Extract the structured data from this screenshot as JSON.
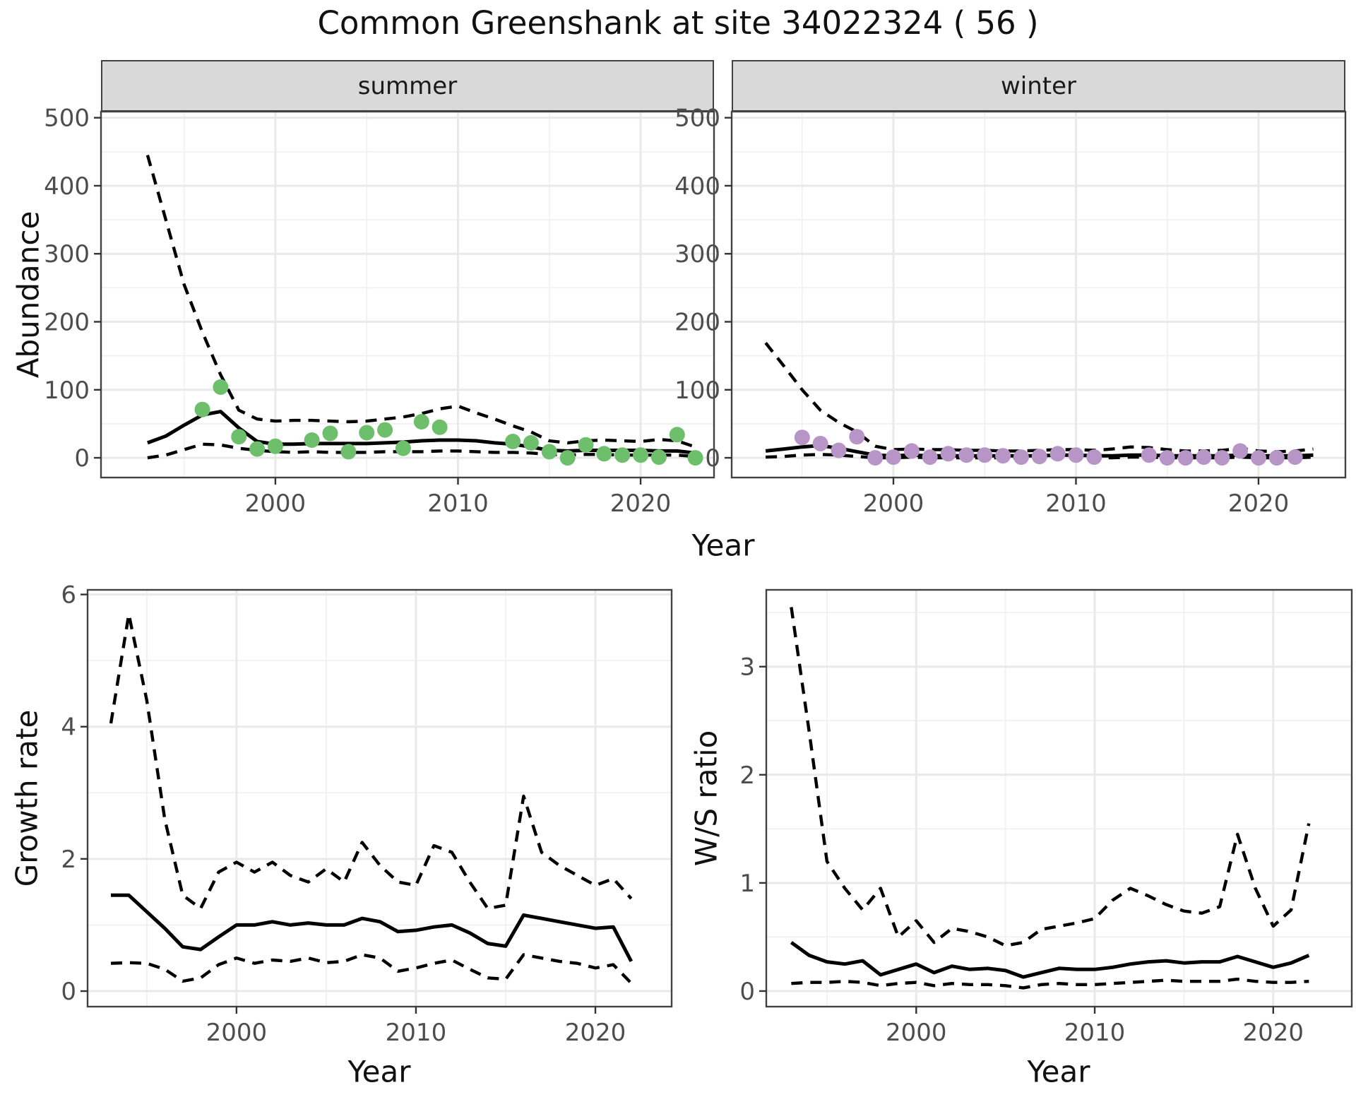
{
  "title": "Common Greenshank at site 34022324 ( 56 )",
  "colors": {
    "summer_point": "#6dbf6b",
    "winter_point": "#b795c7",
    "line": "#000000",
    "strip_bg": "#d9d9d9",
    "panel_border": "#424242",
    "tick_text": "#4d4d4d"
  },
  "chart_data": [
    {
      "id": "abundance-summer",
      "type": "line",
      "facet_label": "summer",
      "xlabel": "Year",
      "ylabel": "Abundance",
      "xlim": [
        1990.45,
        2024.02
      ],
      "ylim": [
        -29,
        509
      ],
      "x_ticks": [
        2000,
        2010,
        2020
      ],
      "x_minor": [
        1995,
        2005,
        2015
      ],
      "y_ticks": [
        0,
        100,
        200,
        300,
        400,
        500
      ],
      "y_minor": [
        50,
        150,
        250,
        350,
        450
      ],
      "x": [
        1993,
        1994,
        1995,
        1996,
        1997,
        1998,
        1999,
        2000,
        2001,
        2002,
        2003,
        2004,
        2005,
        2006,
        2007,
        2008,
        2009,
        2010,
        2011,
        2012,
        2013,
        2014,
        2015,
        2016,
        2017,
        2018,
        2019,
        2020,
        2021,
        2022,
        2023
      ],
      "series": [
        {
          "name": "upper_ci",
          "style": "dashed",
          "values": [
            445,
            350,
            255,
            185,
            122,
            70,
            57,
            54,
            55,
            55,
            54,
            53,
            54,
            57,
            60,
            65,
            72,
            76,
            66,
            57,
            47,
            38,
            25,
            22,
            25,
            26,
            25,
            24,
            27,
            25,
            16
          ]
        },
        {
          "name": "median",
          "style": "solid",
          "values": [
            22,
            32,
            48,
            63,
            68,
            44,
            24,
            20,
            20,
            21,
            21,
            21,
            21,
            22,
            23,
            25,
            26,
            26,
            25,
            22,
            20,
            16,
            11,
            10,
            11,
            11,
            11,
            11,
            10,
            10,
            7
          ]
        },
        {
          "name": "lower_ci",
          "style": "dashed",
          "values": [
            0,
            4,
            12,
            20,
            19,
            14,
            11,
            9,
            8,
            9,
            8,
            8,
            8,
            9,
            9,
            9,
            10,
            10,
            9,
            8,
            8,
            7,
            5,
            4,
            5,
            5,
            4,
            4,
            4,
            4,
            2
          ]
        }
      ],
      "points": {
        "name": "observed-counts",
        "color_key": "summer_point",
        "x": [
          1996,
          1997,
          1998,
          1999,
          2000,
          2002,
          2003,
          2004,
          2005,
          2006,
          2007,
          2008,
          2009,
          2013,
          2014,
          2015,
          2016,
          2017,
          2018,
          2019,
          2020,
          2021,
          2022,
          2023
        ],
        "y": [
          71,
          104,
          31,
          13,
          17,
          26,
          36,
          9,
          37,
          41,
          14,
          53,
          45,
          24,
          22,
          9,
          0,
          19,
          6,
          4,
          4,
          1,
          34,
          0
        ]
      }
    },
    {
      "id": "abundance-winter",
      "type": "line",
      "facet_label": "winter",
      "xlabel": "Year",
      "ylabel": "Abundance",
      "xlim": [
        1991.14,
        2024.76
      ],
      "ylim": [
        -29,
        509
      ],
      "x_ticks": [
        2000,
        2010,
        2020
      ],
      "x_minor": [
        1995,
        2005,
        2015
      ],
      "y_ticks": [
        0,
        100,
        200,
        300,
        400,
        500
      ],
      "y_minor": [
        50,
        150,
        250,
        350,
        450
      ],
      "x": [
        1993,
        1994,
        1995,
        1996,
        1997,
        1998,
        1999,
        2000,
        2001,
        2002,
        2003,
        2004,
        2005,
        2006,
        2007,
        2008,
        2009,
        2010,
        2011,
        2012,
        2013,
        2014,
        2015,
        2016,
        2017,
        2018,
        2019,
        2020,
        2021,
        2022,
        2023
      ],
      "series": [
        {
          "name": "upper_ci",
          "style": "dashed",
          "values": [
            169,
            135,
            100,
            70,
            52,
            38,
            17,
            12,
            13,
            12,
            12,
            11,
            11,
            10,
            10,
            11,
            12,
            12,
            11,
            13,
            16,
            15,
            12,
            10,
            10,
            11,
            14,
            10,
            9,
            10,
            13
          ]
        },
        {
          "name": "median",
          "style": "solid",
          "values": [
            10,
            13,
            16,
            18,
            14,
            9,
            4,
            3,
            4,
            3,
            3,
            3,
            3,
            3,
            3,
            3,
            4,
            4,
            3,
            3,
            4,
            4,
            3,
            3,
            3,
            3,
            4,
            3,
            3,
            3,
            4
          ]
        },
        {
          "name": "lower_ci",
          "style": "dashed",
          "values": [
            1,
            2,
            4,
            5,
            4,
            2,
            0,
            0,
            1,
            0,
            0,
            0,
            0,
            0,
            0,
            0,
            1,
            1,
            0,
            0,
            1,
            1,
            0,
            0,
            0,
            0,
            1,
            0,
            0,
            0,
            1
          ]
        }
      ],
      "points": {
        "name": "observed-counts",
        "color_key": "winter_point",
        "x": [
          1995,
          1996,
          1997,
          1998,
          1999,
          2000,
          2001,
          2002,
          2003,
          2004,
          2005,
          2006,
          2007,
          2008,
          2009,
          2010,
          2011,
          2014,
          2015,
          2016,
          2017,
          2018,
          2019,
          2020,
          2021,
          2022
        ],
        "y": [
          30,
          21,
          11,
          31,
          0,
          1,
          10,
          1,
          6,
          4,
          4,
          3,
          1,
          2,
          6,
          4,
          1,
          4,
          0,
          0,
          1,
          0,
          10,
          0,
          0,
          1
        ]
      }
    },
    {
      "id": "growth-rate",
      "type": "line",
      "facet_label": "",
      "xlabel": "Year",
      "ylabel": "Growth rate",
      "xlim": [
        1991.7,
        2024.25
      ],
      "ylim": [
        -0.235,
        6.07
      ],
      "x_ticks": [
        2000,
        2010,
        2020
      ],
      "x_minor": [
        1995,
        2005,
        2015
      ],
      "y_ticks": [
        0,
        2,
        4,
        6
      ],
      "y_minor": [
        1,
        3,
        5
      ],
      "x": [
        1993,
        1994,
        1995,
        1996,
        1997,
        1998,
        1999,
        2000,
        2001,
        2002,
        2003,
        2004,
        2005,
        2006,
        2007,
        2008,
        2009,
        2010,
        2011,
        2012,
        2013,
        2014,
        2015,
        2016,
        2017,
        2018,
        2019,
        2020,
        2021,
        2022
      ],
      "series": [
        {
          "name": "upper_ci",
          "style": "dashed",
          "values": [
            4.05,
            5.7,
            4.4,
            2.6,
            1.45,
            1.25,
            1.8,
            1.95,
            1.8,
            1.95,
            1.75,
            1.65,
            1.85,
            1.65,
            2.25,
            1.9,
            1.65,
            1.6,
            2.2,
            2.1,
            1.65,
            1.25,
            1.3,
            2.95,
            2.1,
            1.9,
            1.75,
            1.6,
            1.7,
            1.4
          ]
        },
        {
          "name": "median",
          "style": "solid",
          "values": [
            1.45,
            1.45,
            1.2,
            0.95,
            0.67,
            0.63,
            0.82,
            1.0,
            1.0,
            1.05,
            1.0,
            1.03,
            1.0,
            1.0,
            1.1,
            1.05,
            0.9,
            0.92,
            0.97,
            1.0,
            0.88,
            0.72,
            0.68,
            1.15,
            1.1,
            1.05,
            1.0,
            0.95,
            0.97,
            0.45
          ]
        },
        {
          "name": "lower_ci",
          "style": "dashed",
          "values": [
            0.42,
            0.43,
            0.42,
            0.33,
            0.15,
            0.2,
            0.4,
            0.5,
            0.42,
            0.47,
            0.45,
            0.5,
            0.43,
            0.45,
            0.55,
            0.5,
            0.3,
            0.35,
            0.42,
            0.47,
            0.33,
            0.2,
            0.18,
            0.55,
            0.5,
            0.45,
            0.42,
            0.35,
            0.4,
            0.12
          ]
        }
      ],
      "points": null
    },
    {
      "id": "ws-ratio",
      "type": "line",
      "facet_label": "",
      "xlabel": "Year",
      "ylabel": "W/S ratio",
      "xlim": [
        1991.6,
        2024.4
      ],
      "ylim": [
        -0.144,
        3.71
      ],
      "x_ticks": [
        2000,
        2010,
        2020
      ],
      "x_minor": [
        1995,
        2005,
        2015
      ],
      "y_ticks": [
        0,
        1,
        2,
        3
      ],
      "y_minor": [
        0.5,
        1.5,
        2.5,
        3.5
      ],
      "x": [
        1993,
        1994,
        1995,
        1996,
        1997,
        1998,
        1999,
        2000,
        2001,
        2002,
        2003,
        2004,
        2005,
        2006,
        2007,
        2008,
        2009,
        2010,
        2011,
        2012,
        2013,
        2014,
        2015,
        2016,
        2017,
        2018,
        2019,
        2020,
        2021,
        2022
      ],
      "series": [
        {
          "name": "upper_ci",
          "style": "dashed",
          "values": [
            3.55,
            2.4,
            1.2,
            0.95,
            0.75,
            0.95,
            0.5,
            0.65,
            0.45,
            0.58,
            0.55,
            0.5,
            0.42,
            0.45,
            0.57,
            0.6,
            0.63,
            0.67,
            0.84,
            0.95,
            0.88,
            0.8,
            0.74,
            0.72,
            0.78,
            1.45,
            0.95,
            0.6,
            0.75,
            1.55
          ]
        },
        {
          "name": "median",
          "style": "solid",
          "values": [
            0.45,
            0.33,
            0.27,
            0.25,
            0.28,
            0.15,
            0.2,
            0.25,
            0.17,
            0.23,
            0.2,
            0.21,
            0.19,
            0.13,
            0.17,
            0.21,
            0.2,
            0.2,
            0.22,
            0.25,
            0.27,
            0.28,
            0.26,
            0.27,
            0.27,
            0.32,
            0.27,
            0.22,
            0.26,
            0.33
          ]
        },
        {
          "name": "lower_ci",
          "style": "dashed",
          "values": [
            0.07,
            0.08,
            0.08,
            0.09,
            0.08,
            0.05,
            0.07,
            0.08,
            0.05,
            0.07,
            0.06,
            0.06,
            0.05,
            0.03,
            0.06,
            0.07,
            0.06,
            0.06,
            0.07,
            0.08,
            0.09,
            0.1,
            0.09,
            0.09,
            0.09,
            0.11,
            0.09,
            0.08,
            0.08,
            0.09
          ]
        }
      ],
      "points": null
    }
  ]
}
